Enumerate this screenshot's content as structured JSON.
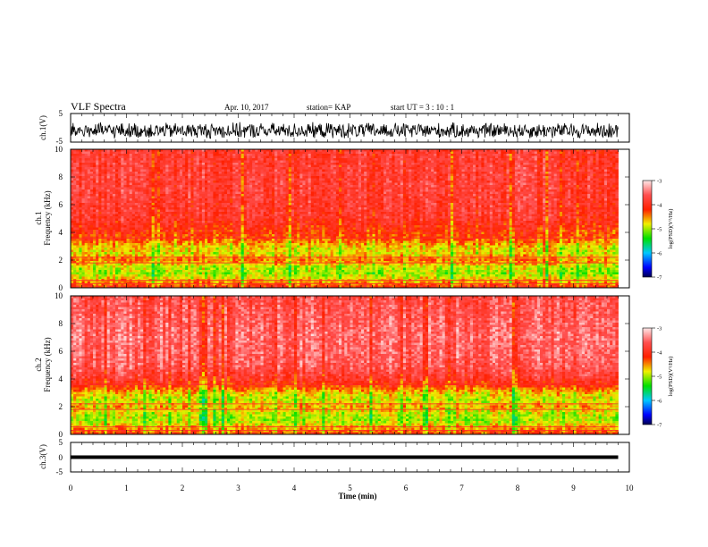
{
  "header": {
    "title": "VLF Spectra",
    "date": "Apr. 10, 2017",
    "station": "station= KAP",
    "start_ut": "start  UT =   3  : 10 : 1"
  },
  "colors": {
    "spectrum_low": "#00009a",
    "spectrum_mid": "#00e000",
    "spectrum_yellow": "#f0f000",
    "spectrum_high": "#ff2000",
    "spectrum_top": "#ffe0e0",
    "waveform": "#000000"
  },
  "chart_data": [
    {
      "type": "line",
      "panel": "ch1-waveform",
      "ylabel": "ch.1(V)",
      "ylim": [
        -5,
        5
      ],
      "yticks": [
        "5",
        "-5"
      ],
      "x": [
        0,
        9.8
      ],
      "description_level": "noisy signal around -1 V, amplitude about ±3 V"
    },
    {
      "type": "heatmap",
      "panel": "ch1-spectrogram",
      "ylabel_line1": "ch.1",
      "ylabel_line2": "Frequency (kHz)",
      "xlim": [
        0,
        10
      ],
      "ylim": [
        0,
        10
      ],
      "data_extent_x": 9.8,
      "yticks": [
        "0",
        "2",
        "4",
        "6",
        "8",
        "10"
      ],
      "colorbar": {
        "label": "log(PSD)(V²/Hz)",
        "ticks": [
          "-3",
          "-4",
          "-5",
          "-6",
          "-7"
        ],
        "range": [
          -7,
          -3
        ]
      },
      "frequency_profile_khz": [
        [
          0,
          -4.1
        ],
        [
          0.5,
          -4.6
        ],
        [
          1.0,
          -5.0
        ],
        [
          1.5,
          -4.9
        ],
        [
          2.0,
          -4.4
        ],
        [
          2.5,
          -4.8
        ],
        [
          3.0,
          -4.7
        ],
        [
          3.5,
          -4.3
        ],
        [
          4.0,
          -4.2
        ],
        [
          5.0,
          -3.9
        ],
        [
          7.0,
          -3.8
        ],
        [
          10.0,
          -3.85
        ]
      ]
    },
    {
      "type": "heatmap",
      "panel": "ch2-spectrogram",
      "ylabel_line1": "ch.2",
      "ylabel_line2": "Frequency (kHz)",
      "xlim": [
        0,
        10
      ],
      "ylim": [
        0,
        10
      ],
      "data_extent_x": 9.8,
      "yticks": [
        "0",
        "2",
        "4",
        "6",
        "8",
        "10"
      ],
      "colorbar": {
        "label": "log(PSD)(V²/Hz)",
        "ticks": [
          "-3",
          "-4",
          "-5",
          "-6",
          "-7"
        ],
        "range": [
          -7,
          -3
        ]
      },
      "frequency_profile_khz": [
        [
          0,
          -4.2
        ],
        [
          0.5,
          -4.6
        ],
        [
          1.0,
          -5.0
        ],
        [
          1.5,
          -4.9
        ],
        [
          2.0,
          -4.6
        ],
        [
          2.5,
          -4.9
        ],
        [
          3.0,
          -4.7
        ],
        [
          3.5,
          -4.2
        ],
        [
          4.0,
          -3.9
        ],
        [
          5.0,
          -3.6
        ],
        [
          7.0,
          -3.5
        ],
        [
          10.0,
          -3.7
        ]
      ]
    },
    {
      "type": "line",
      "panel": "ch3-waveform",
      "ylabel": "ch.3(V)",
      "ylim": [
        -5,
        5
      ],
      "yticks": [
        "5",
        "0",
        "-5"
      ],
      "x": [
        0,
        9.8
      ],
      "level": 0,
      "xlabel": "Time (min)",
      "xticks": [
        "0",
        "1",
        "2",
        "3",
        "4",
        "5",
        "6",
        "7",
        "8",
        "9",
        "10"
      ]
    }
  ]
}
